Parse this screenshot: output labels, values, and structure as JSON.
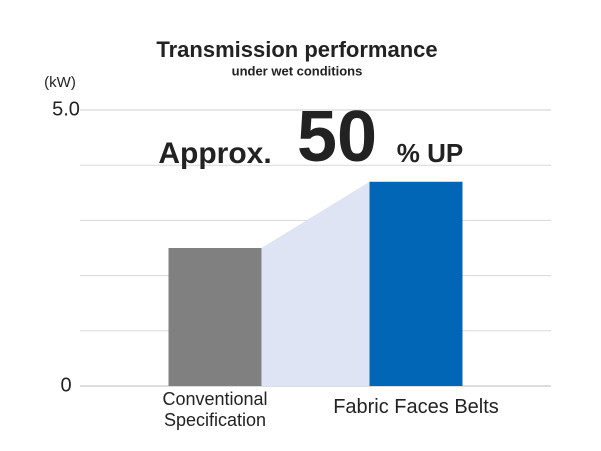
{
  "chart_data": {
    "type": "bar",
    "title": "Transmission performance",
    "subtitle": "under wet conditions",
    "y_unit": "(kW)",
    "categories": [
      "Conventional Specification",
      "Fabric Faces Belts"
    ],
    "values": [
      2.5,
      3.7
    ],
    "colors": [
      "#808080",
      "#0066b5"
    ],
    "connector_color": "#dfe4f4",
    "ylim": [
      0,
      5
    ],
    "yticks": [
      0,
      {
        "value": 5,
        "label": "5.0"
      }
    ],
    "minor_yticks": [
      1,
      2,
      3,
      4
    ],
    "grid": true,
    "annotation": {
      "prefix": "Approx.",
      "number": "50",
      "suffix": "% UP",
      "color": "#0066b5"
    }
  }
}
